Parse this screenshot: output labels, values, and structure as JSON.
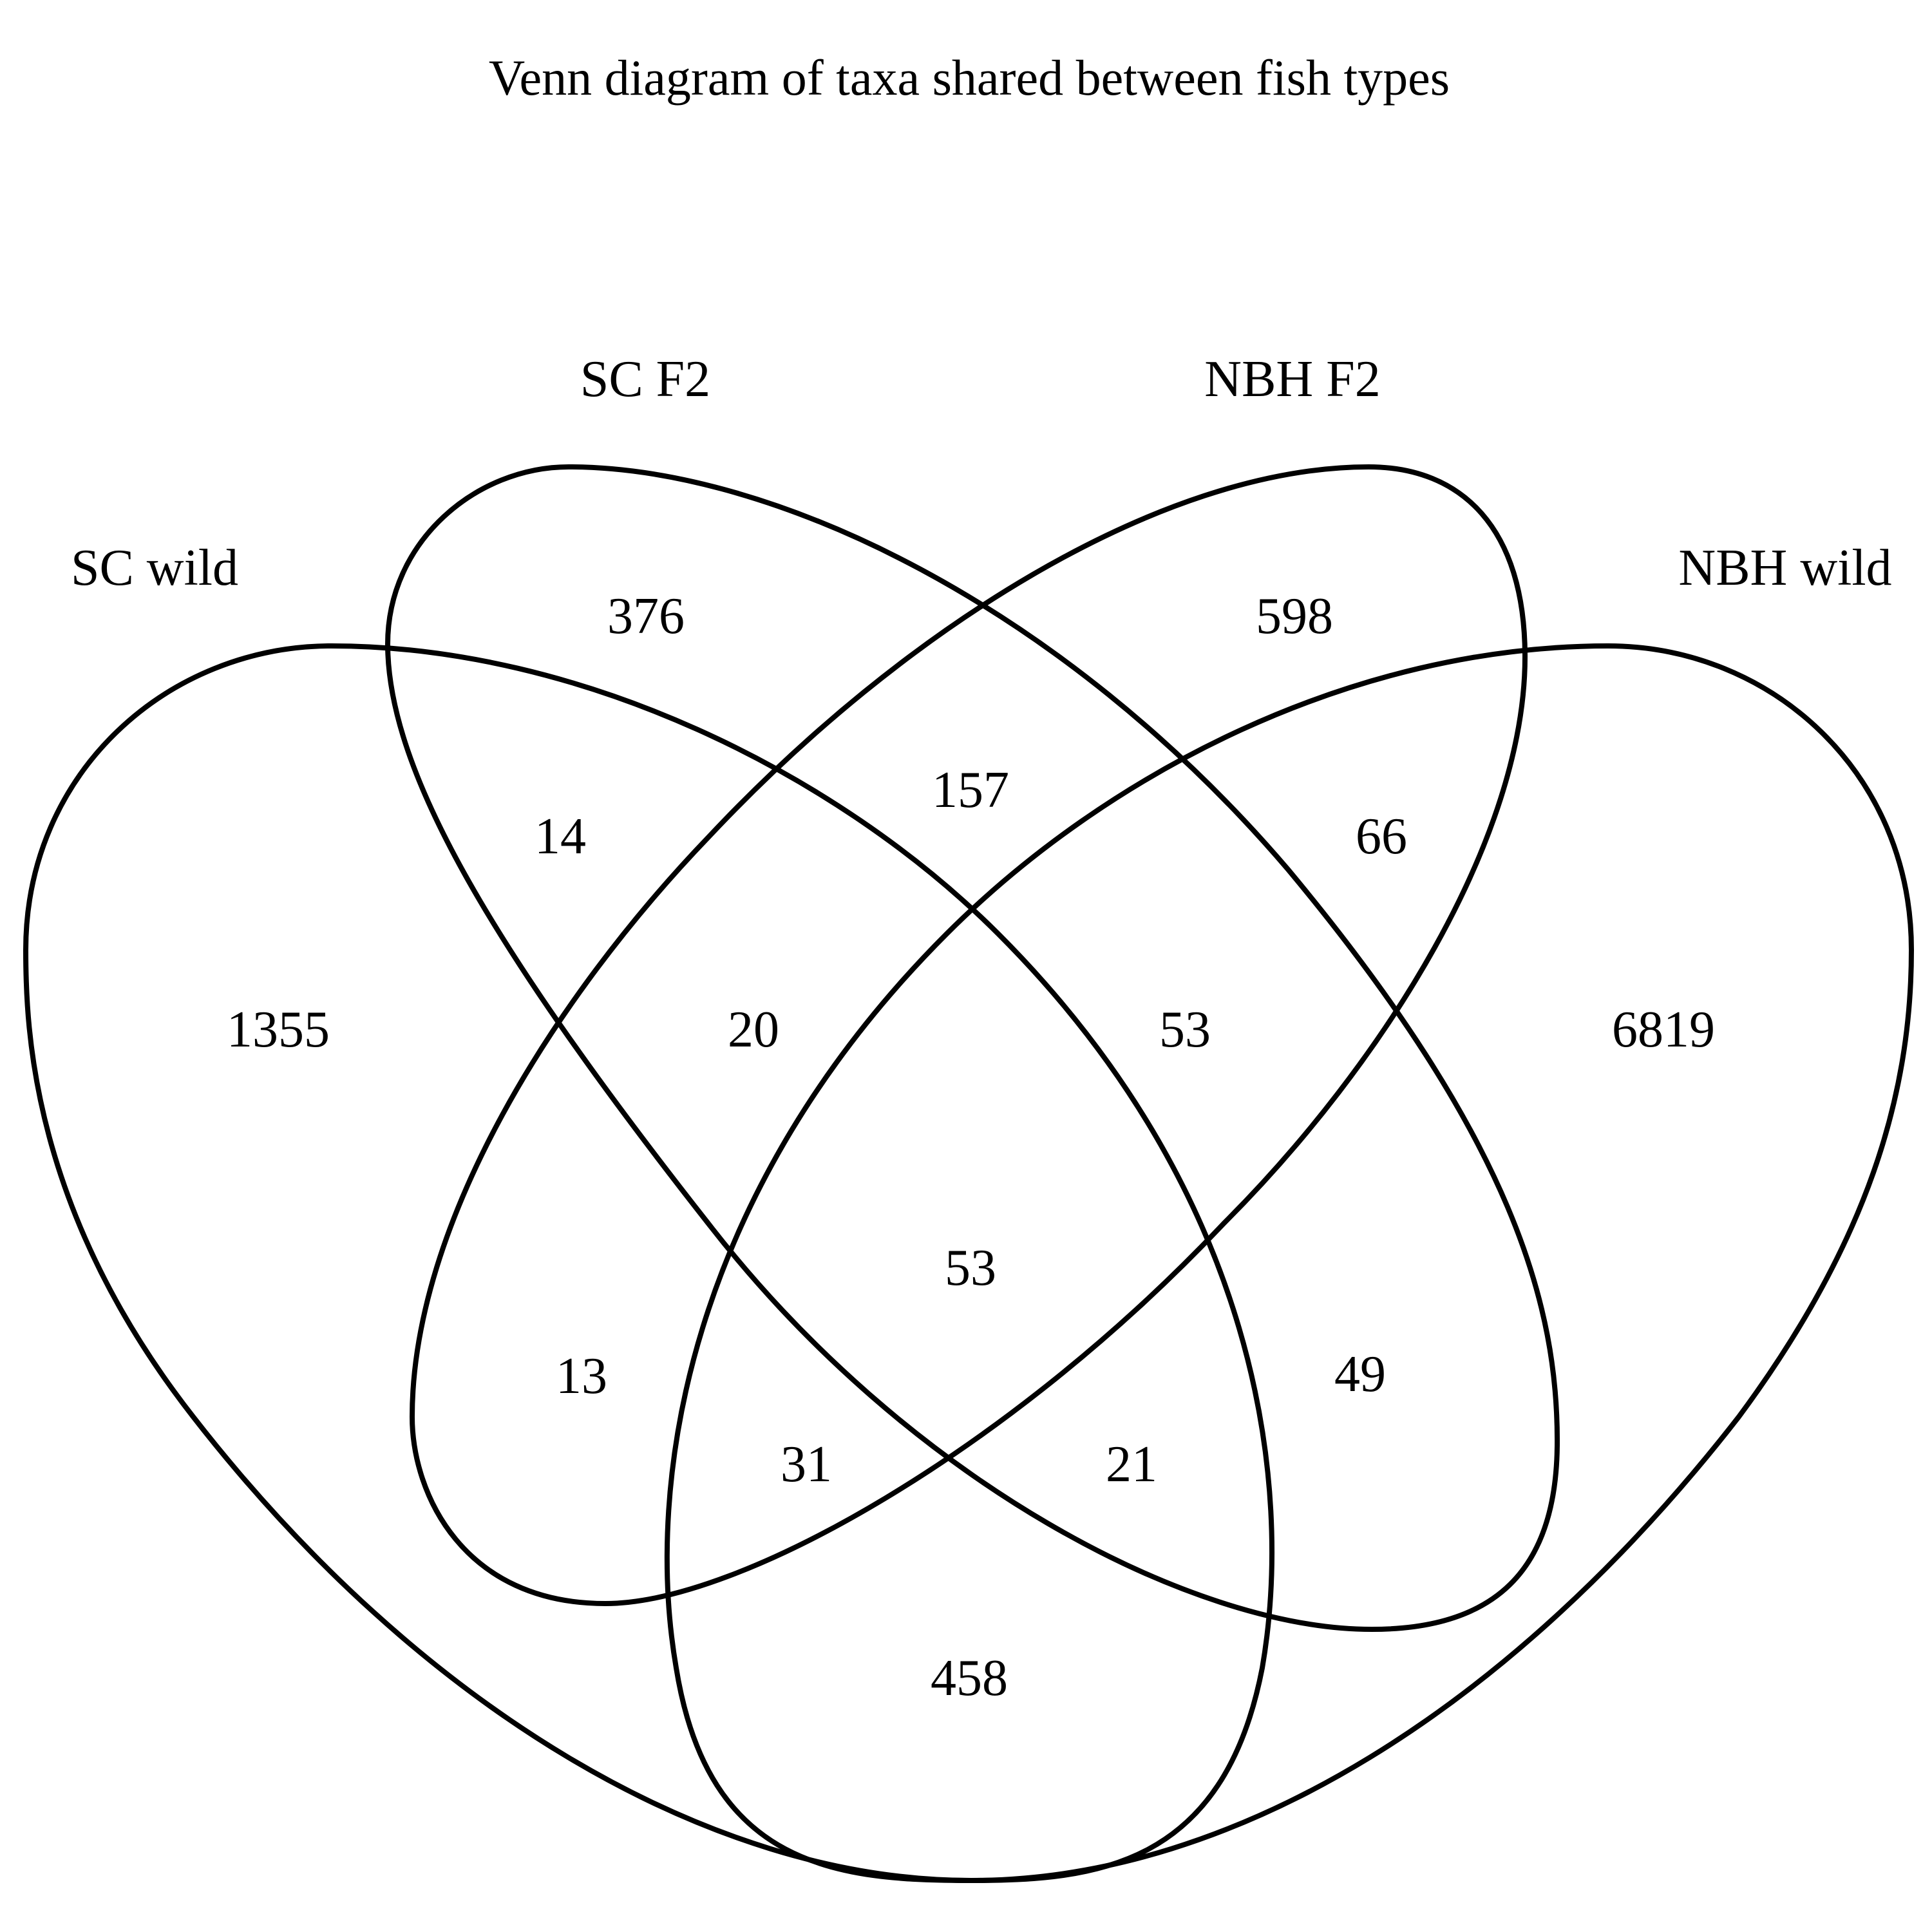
{
  "title": "Venn diagram of taxa shared between fish types",
  "sets": [
    {
      "key": "sc_wild",
      "label": "SC wild"
    },
    {
      "key": "sc_f2",
      "label": "SC F2"
    },
    {
      "key": "nbh_f2",
      "label": "NBH F2"
    },
    {
      "key": "nbh_wild",
      "label": "NBH wild"
    }
  ],
  "regions": {
    "sc_wild_only": "1355",
    "sc_f2_only": "376",
    "nbh_f2_only": "598",
    "nbh_wild_only": "6819",
    "sc_wild__sc_f2": "14",
    "sc_f2__nbh_f2": "157",
    "nbh_f2__nbh_wild": "66",
    "sc_wild__sc_f2__nbh_f2": "20",
    "sc_f2__nbh_f2__nbh_wild": "53",
    "all_four": "53",
    "sc_wild__nbh_f2": "13",
    "sc_f2__nbh_wild": "49",
    "sc_wild__nbh_f2__nbh_wild": "31",
    "sc_wild__sc_f2__nbh_wild": "21",
    "sc_wild__nbh_wild": "458"
  },
  "colors": {
    "stroke": "#000000",
    "background": "#ffffff"
  }
}
